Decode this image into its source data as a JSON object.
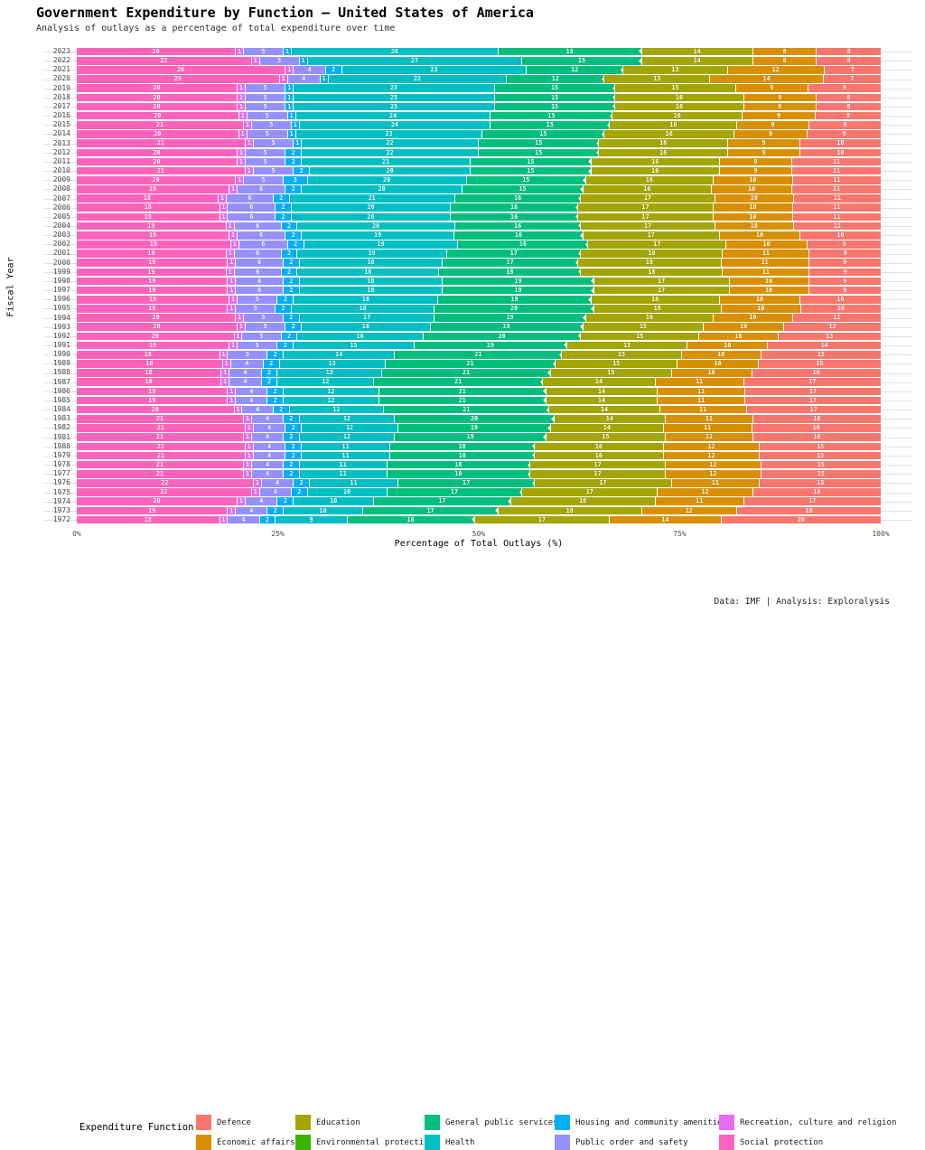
{
  "title": "Government Expenditure by Function — United States of America",
  "subtitle": "Analysis of outlays as a percentage of total expenditure over time",
  "caption": "Data: IMF | Analysis: Exploralysis",
  "axes": {
    "x_label": "Percentage of Total Outlays (%)",
    "y_label": "Fiscal Year",
    "x_ticks": [
      "0%",
      "25%",
      "50%",
      "75%",
      "100%"
    ]
  },
  "legend": {
    "title": "Expenditure Function",
    "items": [
      {
        "label": "Defence",
        "color": "#F8766D"
      },
      {
        "label": "Economic affairs",
        "color": "#D89000"
      },
      {
        "label": "Education",
        "color": "#A3A500"
      },
      {
        "label": "Environmental protection",
        "color": "#39B600"
      },
      {
        "label": "General public services",
        "color": "#00BF7D"
      },
      {
        "label": "Health",
        "color": "#00BFC4"
      },
      {
        "label": "Housing and community amenities",
        "color": "#00B0F6"
      },
      {
        "label": "Public order and safety",
        "color": "#9590FF"
      },
      {
        "label": "Recreation, culture and religion",
        "color": "#E76BF3"
      },
      {
        "label": "Social protection",
        "color": "#FF62BC"
      }
    ]
  },
  "chart_data": {
    "type": "bar",
    "stacked": true,
    "orientation": "horizontal",
    "title": "Government Expenditure by Function — United States of America",
    "xlabel": "Percentage of Total Outlays (%)",
    "ylabel": "Fiscal Year",
    "xlim": [
      0,
      100
    ],
    "grid": false,
    "legend_position": "bottom",
    "units": "percent of total outlays, labels rounded to whole percent",
    "series": [
      {
        "name": "Social protection",
        "color": "#FF62BC"
      },
      {
        "name": "Recreation, culture and religion",
        "color": "#E76BF3"
      },
      {
        "name": "Public order and safety",
        "color": "#9590FF"
      },
      {
        "name": "Housing and community amenities",
        "color": "#00B0F6"
      },
      {
        "name": "Health",
        "color": "#00BFC4"
      },
      {
        "name": "General public services",
        "color": "#00BF7D"
      },
      {
        "name": "Environmental protection",
        "color": "#39B600"
      },
      {
        "name": "Education",
        "color": "#A3A500"
      },
      {
        "name": "Economic affairs",
        "color": "#D89000"
      },
      {
        "name": "Defence",
        "color": "#F8766D"
      }
    ],
    "rows": [
      {
        "year": "2023",
        "values": [
          20,
          1,
          5,
          1,
          26,
          18,
          0,
          14,
          8,
          8
        ]
      },
      {
        "year": "2022",
        "values": [
          22,
          1,
          5,
          1,
          27,
          15,
          0,
          14,
          8,
          8
        ]
      },
      {
        "year": "2021",
        "values": [
          26,
          1,
          4,
          2,
          23,
          12,
          0,
          13,
          12,
          7
        ]
      },
      {
        "year": "2020",
        "values": [
          25,
          1,
          4,
          1,
          22,
          12,
          0,
          13,
          14,
          7
        ]
      },
      {
        "year": "2019",
        "values": [
          20,
          1,
          5,
          1,
          25,
          15,
          0,
          15,
          9,
          9
        ]
      },
      {
        "year": "2018",
        "values": [
          20,
          1,
          5,
          1,
          25,
          15,
          0,
          16,
          9,
          8
        ]
      },
      {
        "year": "2017",
        "values": [
          20,
          1,
          5,
          1,
          25,
          15,
          0,
          16,
          9,
          8
        ]
      },
      {
        "year": "2016",
        "values": [
          20,
          1,
          5,
          1,
          24,
          15,
          0,
          16,
          9,
          8
        ]
      },
      {
        "year": "2015",
        "values": [
          21,
          1,
          5,
          1,
          24,
          15,
          0,
          16,
          9,
          9
        ]
      },
      {
        "year": "2014",
        "values": [
          20,
          1,
          5,
          1,
          23,
          15,
          0,
          16,
          9,
          9
        ]
      },
      {
        "year": "2013",
        "values": [
          21,
          1,
          5,
          1,
          22,
          15,
          0,
          16,
          9,
          10
        ]
      },
      {
        "year": "2012",
        "values": [
          20,
          1,
          5,
          2,
          22,
          15,
          0,
          16,
          9,
          10
        ]
      },
      {
        "year": "2011",
        "values": [
          20,
          1,
          5,
          2,
          21,
          15,
          0,
          16,
          9,
          11
        ]
      },
      {
        "year": "2010",
        "values": [
          21,
          1,
          5,
          2,
          20,
          15,
          0,
          16,
          9,
          11
        ]
      },
      {
        "year": "2009",
        "values": [
          20,
          1,
          5,
          3,
          20,
          15,
          0,
          16,
          10,
          11
        ]
      },
      {
        "year": "2008",
        "values": [
          19,
          1,
          6,
          2,
          20,
          15,
          0,
          16,
          10,
          11
        ]
      },
      {
        "year": "2007",
        "values": [
          18,
          1,
          6,
          2,
          21,
          16,
          0,
          17,
          10,
          11
        ]
      },
      {
        "year": "2006",
        "values": [
          18,
          1,
          6,
          2,
          20,
          16,
          0,
          17,
          10,
          11
        ]
      },
      {
        "year": "2005",
        "values": [
          18,
          1,
          6,
          2,
          20,
          16,
          0,
          17,
          10,
          11
        ]
      },
      {
        "year": "2004",
        "values": [
          19,
          1,
          6,
          2,
          20,
          16,
          0,
          17,
          10,
          11
        ]
      },
      {
        "year": "2003",
        "values": [
          19,
          1,
          6,
          2,
          19,
          16,
          0,
          17,
          10,
          10
        ]
      },
      {
        "year": "2002",
        "values": [
          19,
          1,
          6,
          2,
          19,
          16,
          0,
          17,
          10,
          9
        ]
      },
      {
        "year": "2001",
        "values": [
          19,
          1,
          6,
          2,
          19,
          17,
          0,
          18,
          11,
          9
        ]
      },
      {
        "year": "2000",
        "values": [
          19,
          1,
          6,
          2,
          18,
          17,
          0,
          18,
          11,
          9
        ]
      },
      {
        "year": "1999",
        "values": [
          19,
          1,
          6,
          2,
          18,
          18,
          0,
          18,
          11,
          9
        ]
      },
      {
        "year": "1998",
        "values": [
          19,
          1,
          6,
          2,
          18,
          19,
          0,
          17,
          10,
          9
        ]
      },
      {
        "year": "1997",
        "values": [
          19,
          1,
          6,
          2,
          18,
          19,
          0,
          17,
          10,
          9
        ]
      },
      {
        "year": "1996",
        "values": [
          19,
          1,
          5,
          2,
          18,
          19,
          0,
          16,
          10,
          10
        ]
      },
      {
        "year": "1995",
        "values": [
          19,
          1,
          5,
          2,
          18,
          20,
          0,
          16,
          10,
          10
        ]
      },
      {
        "year": "1994",
        "values": [
          20,
          1,
          5,
          2,
          17,
          19,
          0,
          16,
          10,
          11
        ]
      },
      {
        "year": "1993",
        "values": [
          20,
          1,
          5,
          2,
          16,
          19,
          0,
          15,
          10,
          12
        ]
      },
      {
        "year": "1992",
        "values": [
          20,
          1,
          5,
          2,
          16,
          20,
          0,
          15,
          10,
          13
        ]
      },
      {
        "year": "1991",
        "values": [
          19,
          1,
          5,
          2,
          15,
          19,
          0,
          15,
          10,
          14
        ]
      },
      {
        "year": "1990",
        "values": [
          18,
          1,
          5,
          2,
          14,
          21,
          0,
          15,
          10,
          15
        ]
      },
      {
        "year": "1989",
        "values": [
          18,
          1,
          4,
          2,
          13,
          21,
          0,
          15,
          10,
          15
        ]
      },
      {
        "year": "1988",
        "values": [
          18,
          1,
          4,
          2,
          13,
          21,
          0,
          15,
          10,
          16
        ]
      },
      {
        "year": "1987",
        "values": [
          18,
          1,
          4,
          2,
          12,
          21,
          0,
          14,
          11,
          17
        ]
      },
      {
        "year": "1986",
        "values": [
          19,
          1,
          4,
          2,
          12,
          21,
          0,
          14,
          11,
          17
        ]
      },
      {
        "year": "1985",
        "values": [
          19,
          1,
          4,
          2,
          12,
          21,
          0,
          14,
          11,
          17
        ]
      },
      {
        "year": "1984",
        "values": [
          20,
          1,
          4,
          2,
          12,
          21,
          0,
          14,
          11,
          17
        ]
      },
      {
        "year": "1983",
        "values": [
          21,
          1,
          4,
          2,
          12,
          20,
          0,
          14,
          11,
          16
        ]
      },
      {
        "year": "1982",
        "values": [
          21,
          1,
          4,
          2,
          12,
          19,
          0,
          14,
          11,
          16
        ]
      },
      {
        "year": "1981",
        "values": [
          21,
          1,
          4,
          2,
          12,
          19,
          0,
          15,
          11,
          16
        ]
      },
      {
        "year": "1980",
        "values": [
          21,
          1,
          4,
          2,
          11,
          18,
          0,
          16,
          12,
          15
        ]
      },
      {
        "year": "1979",
        "values": [
          21,
          1,
          4,
          2,
          11,
          18,
          0,
          16,
          12,
          15
        ]
      },
      {
        "year": "1978",
        "values": [
          21,
          1,
          4,
          2,
          11,
          18,
          0,
          17,
          12,
          15
        ]
      },
      {
        "year": "1977",
        "values": [
          21,
          1,
          4,
          2,
          11,
          18,
          0,
          17,
          12,
          15
        ]
      },
      {
        "year": "1976",
        "values": [
          22,
          1,
          4,
          2,
          11,
          17,
          0,
          17,
          11,
          15
        ]
      },
      {
        "year": "1975",
        "values": [
          22,
          1,
          4,
          2,
          10,
          17,
          0,
          17,
          12,
          16
        ]
      },
      {
        "year": "1974",
        "values": [
          20,
          1,
          4,
          2,
          10,
          17,
          0,
          18,
          11,
          17
        ]
      },
      {
        "year": "1973",
        "values": [
          19,
          1,
          4,
          2,
          10,
          17,
          0,
          18,
          12,
          18
        ]
      },
      {
        "year": "1972",
        "values": [
          18,
          1,
          4,
          2,
          9,
          16,
          0,
          17,
          14,
          20
        ]
      }
    ]
  }
}
